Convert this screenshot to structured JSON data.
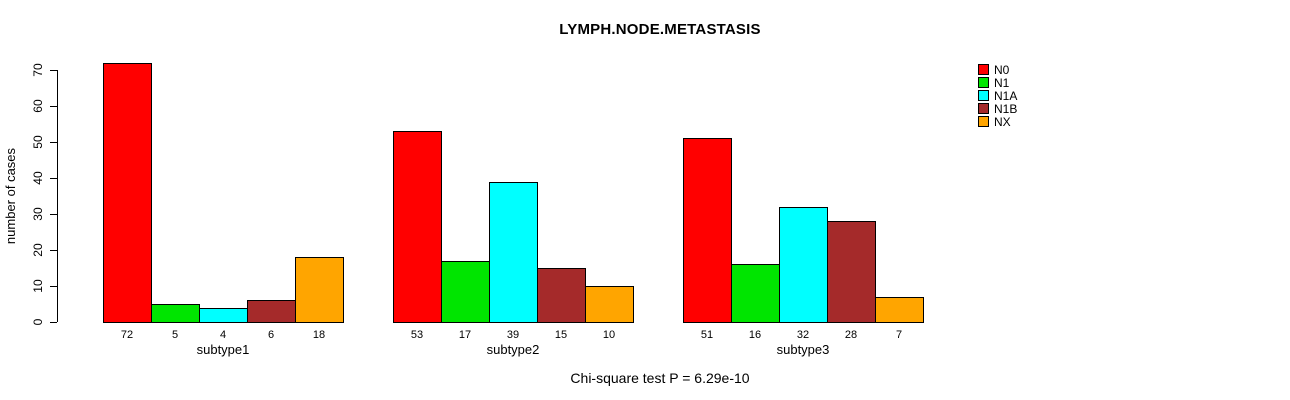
{
  "title": "LYMPH.NODE.METASTASIS",
  "chart_data": {
    "type": "bar",
    "title": "LYMPH.NODE.METASTASIS",
    "xlabel": "",
    "ylabel": "number of cases",
    "ylim": [
      0,
      70
    ],
    "yticks": [
      0,
      10,
      20,
      30,
      40,
      50,
      60,
      70
    ],
    "grid": false,
    "legend_position": "top-right",
    "series": [
      {
        "name": "N0",
        "color": "#FF0000"
      },
      {
        "name": "N1",
        "color": "#00E500"
      },
      {
        "name": "N1A",
        "color": "#00FFFF"
      },
      {
        "name": "N1B",
        "color": "#A52A2A"
      },
      {
        "name": "NX",
        "color": "#FFA500"
      }
    ],
    "groups": [
      {
        "label": "subtype1",
        "values": [
          72,
          5,
          4,
          6,
          18
        ]
      },
      {
        "label": "subtype2",
        "values": [
          53,
          17,
          39,
          15,
          10
        ]
      },
      {
        "label": "subtype3",
        "values": [
          51,
          16,
          32,
          28,
          7
        ]
      }
    ],
    "annotation": "Chi-square test P = 6.29e-10"
  }
}
